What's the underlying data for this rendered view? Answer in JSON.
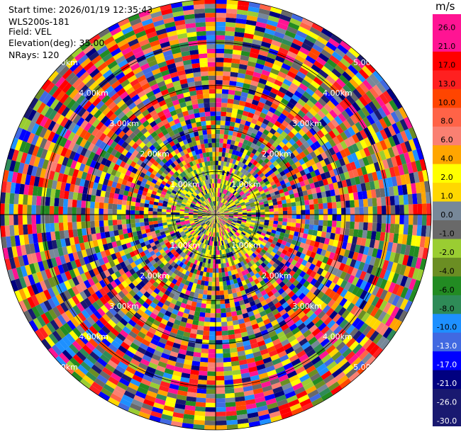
{
  "header": {
    "start_time": "Start time: 2026/01/19 12:35:43",
    "instrument": "WLS200s-181",
    "field": "Field: VEL",
    "elevation": "Elevation(deg): 35.00",
    "nrays": "NRays: 120"
  },
  "chart_data": {
    "type": "heatmap",
    "projection": "polar (PPI)",
    "n_rays": 120,
    "range_ring_labels": [
      "1.00km",
      "2.00km",
      "3.00km",
      "4.00km",
      "5.00km"
    ],
    "colorbar": {
      "unit": "m/s",
      "ticks": [
        "26.0",
        "21.0",
        "17.0",
        "13.0",
        "10.0",
        "8.0",
        "6.0",
        "4.0",
        "2.0",
        "1.0",
        "0.0",
        "-1.0",
        "-2.0",
        "-4.0",
        "-6.0",
        "-8.0",
        "-10.0",
        "-13.0",
        "-17.0",
        "-21.0",
        "-26.0",
        "-30.0"
      ],
      "colors": [
        "#ff1493",
        "#ff1493",
        "#ff0000",
        "#ff2020",
        "#ff4500",
        "#ff6347",
        "#fa8072",
        "#ffa500",
        "#ffff00",
        "#ffd700",
        "#778899",
        "#696969",
        "#9acd32",
        "#6b8e23",
        "#228b22",
        "#2e8b57",
        "#1e90ff",
        "#4169e1",
        "#0000ff",
        "#000080",
        "#191970",
        "#191970"
      ]
    }
  }
}
